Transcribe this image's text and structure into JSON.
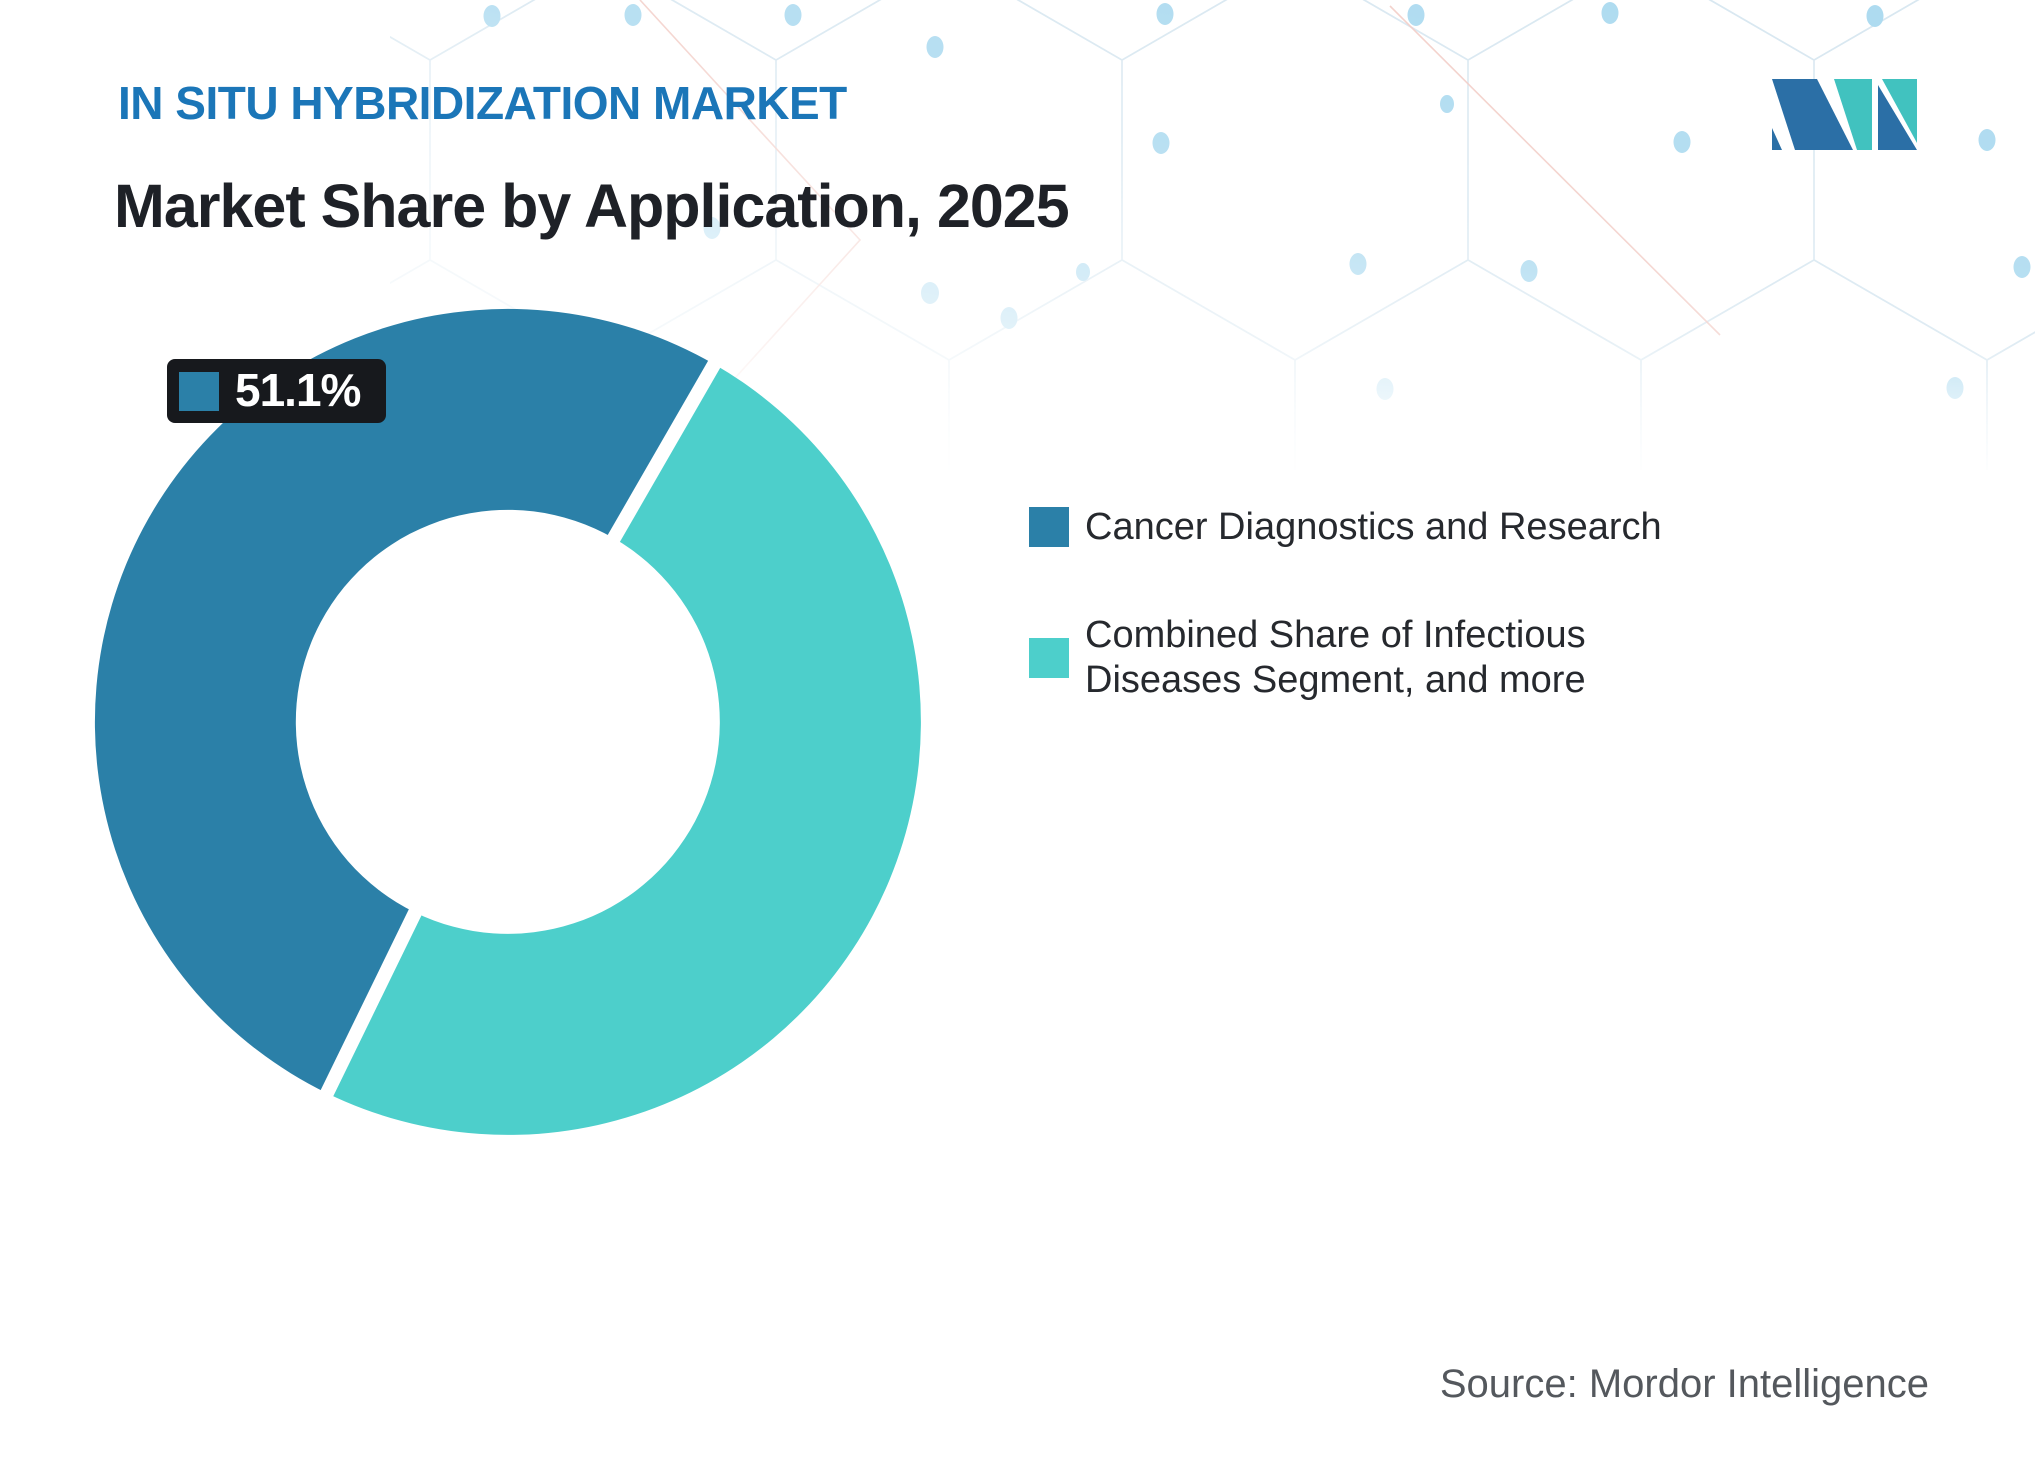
{
  "header": {
    "eyebrow": "IN SITU HYBRIDIZATION MARKET",
    "title": "Market Share by Application, 2025"
  },
  "logo": {
    "label": "Mordor Intelligence logo",
    "colors": {
      "blue": "#2B6FA6",
      "teal": "#41C2BF"
    }
  },
  "chart_data": {
    "type": "pie",
    "subtype": "donut",
    "title": "Market Share by Application, 2025",
    "unit": "percent",
    "categories": [
      "Cancer Diagnostics and Research",
      "Combined Share of Infectious Diseases Segment, and more"
    ],
    "values": [
      51.1,
      48.9
    ],
    "colors": [
      "#2B80A8",
      "#4DCFCB"
    ],
    "callout": {
      "text": "51.1%",
      "segment_index": 0
    },
    "layout": {
      "start_angle_deg": 206,
      "inner_radius_ratio": 0.513,
      "legend_position": "right",
      "gap_color": "#FFFFFF"
    }
  },
  "legend": {
    "items": [
      {
        "label": "Cancer Diagnostics and Research",
        "color": "#2B80A8"
      },
      {
        "label": "Combined Share of Infectious Diseases Segment, and more",
        "color": "#4DCFCB"
      }
    ]
  },
  "callout": {
    "bg": "#17191D"
  },
  "source": {
    "text": "Source: Mordor Intelligence"
  },
  "colors": {
    "eyebrow_text": "#1B76B8",
    "title_text": "#1E2127",
    "legend_text": "#26292E",
    "source_text": "#54585D",
    "pattern_line": "#D9E8F1",
    "pattern_dot": "#AEDBF0",
    "pattern_accent": "#F2CBC4"
  }
}
